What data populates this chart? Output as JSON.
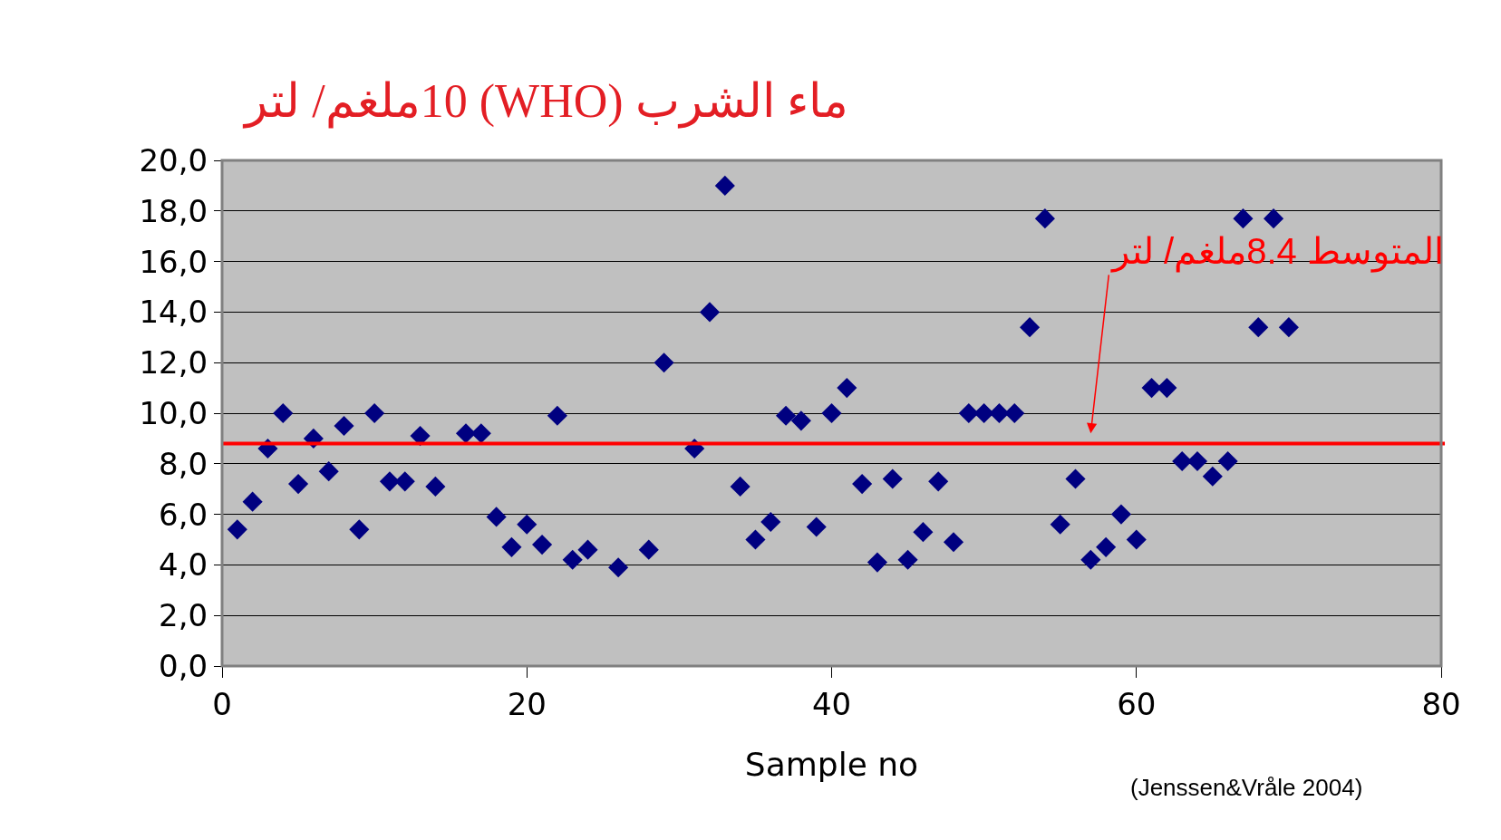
{
  "chart_data": {
    "type": "scatter",
    "title": "ماء الشرب (WHO) 10ملغم/ لتر",
    "xlabel": "Sample no",
    "x": [
      1,
      2,
      3,
      4,
      5,
      6,
      7,
      8,
      9,
      10,
      11,
      12,
      13,
      14,
      16,
      17,
      18,
      19,
      20,
      21,
      22,
      23,
      24,
      26,
      28,
      29,
      31,
      32,
      33,
      34,
      35,
      36,
      37,
      38,
      39,
      40,
      41,
      42,
      43,
      44,
      45,
      46,
      47,
      48,
      49,
      50,
      51,
      52,
      53,
      54,
      55,
      56,
      57,
      58,
      59,
      60,
      61,
      62,
      63,
      64,
      65,
      66,
      67,
      68,
      69,
      70
    ],
    "series": [
      {
        "color": "#000080",
        "values": [
          5.4,
          6.5,
          8.6,
          10.0,
          7.2,
          9.0,
          7.7,
          9.5,
          5.4,
          10.0,
          7.3,
          7.3,
          9.1,
          7.1,
          9.2,
          9.2,
          5.9,
          4.7,
          5.6,
          4.8,
          9.9,
          4.2,
          4.6,
          3.9,
          4.6,
          12.0,
          8.6,
          14.0,
          19.0,
          7.1,
          5.0,
          5.7,
          9.9,
          9.7,
          5.5,
          10.0,
          11.0,
          7.2,
          4.1,
          7.4,
          4.2,
          5.3,
          7.3,
          4.9,
          10.0,
          10.0,
          10.0,
          10.0,
          13.4,
          17.7,
          5.6,
          7.4,
          4.2,
          4.7,
          6.0,
          5.0,
          11.0,
          11.0,
          8.1,
          8.1,
          7.5,
          8.1,
          17.7,
          13.4,
          17.7,
          13.4
        ]
      }
    ],
    "marker": "diamond",
    "grid": "y",
    "xlim": [
      0,
      80
    ],
    "xticks": [
      0,
      20,
      40,
      60,
      80
    ],
    "ylim": [
      0,
      20
    ],
    "yticks": [
      {
        "value": 0,
        "label": "0,0"
      },
      {
        "value": 2,
        "label": "2,0"
      },
      {
        "value": 4,
        "label": "4,0"
      },
      {
        "value": 6,
        "label": "6,0"
      },
      {
        "value": 8,
        "label": "8,0"
      },
      {
        "value": 10,
        "label": "10,0"
      },
      {
        "value": 12,
        "label": "12,0"
      },
      {
        "value": 14,
        "label": "14,0"
      },
      {
        "value": 16,
        "label": "16,0"
      },
      {
        "value": 18,
        "label": "18,0"
      },
      {
        "value": 20,
        "label": "20,0"
      }
    ],
    "ref_lines": [
      {
        "axis": "y",
        "value": 8.8,
        "label": "المتوسط 8.4ملغم/ لتر",
        "color": "#ff0000"
      }
    ],
    "annotations": [
      "(Jenssen&Vråle 2004)"
    ]
  }
}
